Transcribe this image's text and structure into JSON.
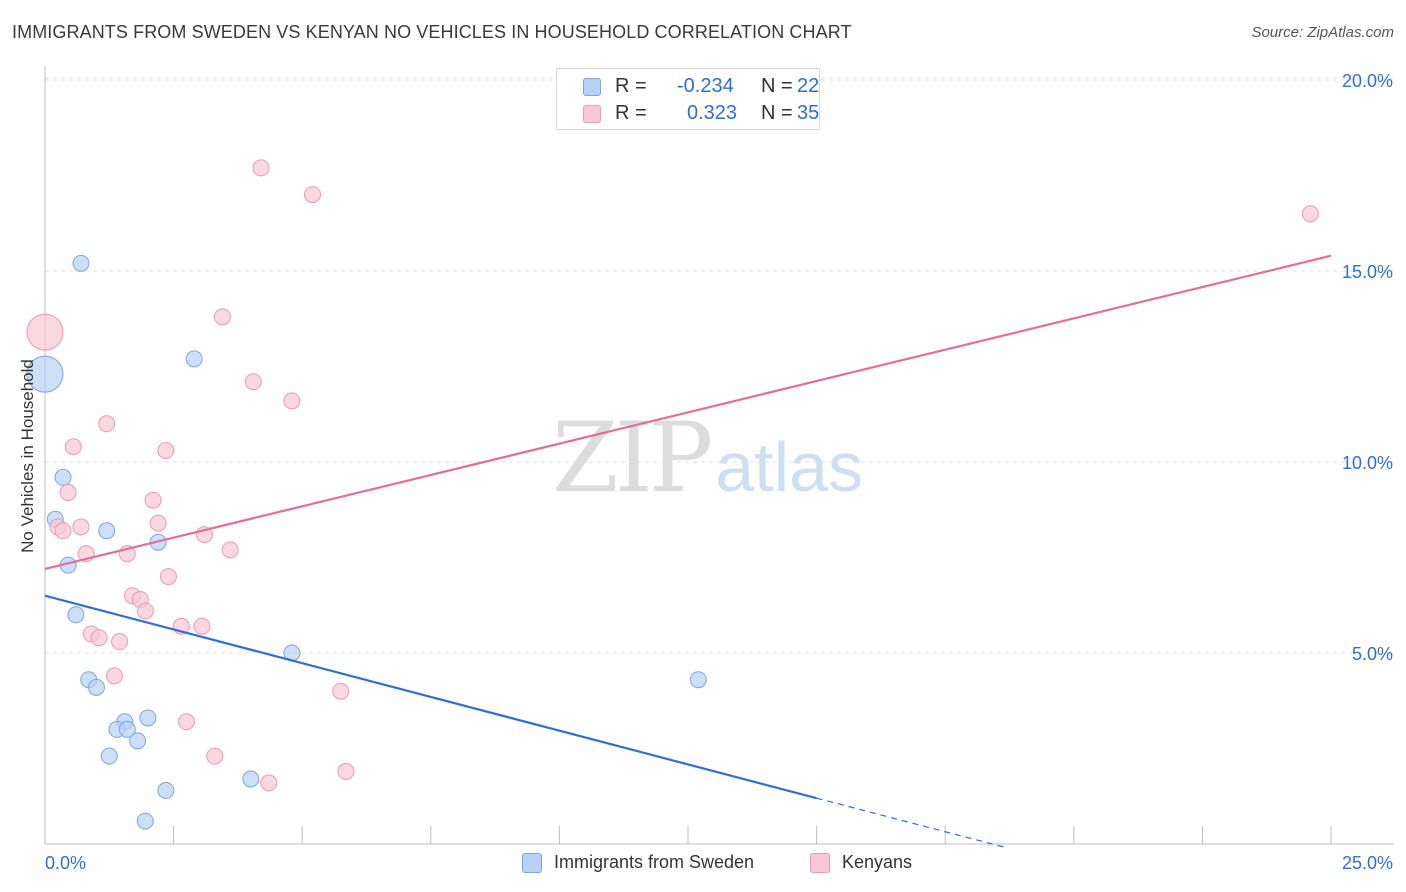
{
  "title": "IMMIGRANTS FROM SWEDEN VS KENYAN NO VEHICLES IN HOUSEHOLD CORRELATION CHART",
  "source": "Source: ZipAtlas.com",
  "watermark": {
    "zip": "ZIP",
    "atlas": "atlas"
  },
  "colors": {
    "sweden_fill": "#b8d2f4",
    "sweden_stroke": "#7aa6de",
    "sweden_line": "#2f6fd0",
    "kenya_fill": "#f8c8d6",
    "kenya_stroke": "#ea9ab3",
    "kenya_line": "#e0709a",
    "value_text": "#2f6fd0",
    "grid": "#e2e2e2"
  },
  "legend": {
    "rows": [
      {
        "r_label": "R =",
        "r_value": "-0.234",
        "n_label": "N =",
        "n_value": "22"
      },
      {
        "r_label": "R =",
        "r_value": "0.323",
        "n_label": "N =",
        "n_value": "35"
      }
    ]
  },
  "bottom_legend": [
    "Immigrants from Sweden",
    "Kenyans"
  ],
  "chart_data": {
    "type": "scatter",
    "title": "IMMIGRANTS FROM SWEDEN VS KENYAN NO VEHICLES IN HOUSEHOLD CORRELATION CHART",
    "xlabel": "",
    "ylabel": "No Vehicles in Household",
    "xlim": [
      0,
      25
    ],
    "ylim": [
      0,
      20.5
    ],
    "x_tick_labels": [
      "0.0%",
      "25.0%"
    ],
    "y_ticks": [
      5,
      10,
      15,
      20
    ],
    "y_tick_labels": [
      "5.0%",
      "10.0%",
      "15.0%",
      "20.0%"
    ],
    "grid": "horizontal dashed",
    "series": [
      {
        "name": "Immigrants from Sweden",
        "points": [
          {
            "x": 0.0,
            "y": 12.3,
            "size": "large"
          },
          {
            "x": 0.7,
            "y": 15.2
          },
          {
            "x": 2.9,
            "y": 12.7
          },
          {
            "x": 0.35,
            "y": 9.6
          },
          {
            "x": 0.2,
            "y": 8.5
          },
          {
            "x": 1.2,
            "y": 8.2
          },
          {
            "x": 2.2,
            "y": 7.9
          },
          {
            "x": 0.45,
            "y": 7.3
          },
          {
            "x": 0.6,
            "y": 6.0
          },
          {
            "x": 4.8,
            "y": 5.0
          },
          {
            "x": 0.85,
            "y": 4.3
          },
          {
            "x": 1.0,
            "y": 4.1
          },
          {
            "x": 1.55,
            "y": 3.2
          },
          {
            "x": 2.0,
            "y": 3.3
          },
          {
            "x": 1.4,
            "y": 3.0
          },
          {
            "x": 1.6,
            "y": 3.0
          },
          {
            "x": 1.8,
            "y": 2.7
          },
          {
            "x": 1.25,
            "y": 2.3
          },
          {
            "x": 4.0,
            "y": 1.7
          },
          {
            "x": 2.35,
            "y": 1.4
          },
          {
            "x": 1.95,
            "y": 0.6
          },
          {
            "x": 12.7,
            "y": 4.3
          }
        ],
        "trend": {
          "x": [
            0,
            15
          ],
          "y": [
            6.5,
            1.2
          ],
          "dashed_extension_to": {
            "x": 18.7,
            "y": -0.1
          }
        }
      },
      {
        "name": "Kenyans",
        "points": [
          {
            "x": 0.0,
            "y": 13.4,
            "size": "large"
          },
          {
            "x": 4.2,
            "y": 17.7
          },
          {
            "x": 5.2,
            "y": 17.0
          },
          {
            "x": 24.6,
            "y": 16.5
          },
          {
            "x": 3.45,
            "y": 13.8
          },
          {
            "x": 4.05,
            "y": 12.1
          },
          {
            "x": 4.8,
            "y": 11.6
          },
          {
            "x": 1.2,
            "y": 11.0
          },
          {
            "x": 0.55,
            "y": 10.4
          },
          {
            "x": 2.35,
            "y": 10.3
          },
          {
            "x": 0.45,
            "y": 9.2
          },
          {
            "x": 2.1,
            "y": 9.0
          },
          {
            "x": 0.25,
            "y": 8.3
          },
          {
            "x": 0.35,
            "y": 8.2
          },
          {
            "x": 0.7,
            "y": 8.3
          },
          {
            "x": 2.2,
            "y": 8.4
          },
          {
            "x": 3.1,
            "y": 8.1
          },
          {
            "x": 0.8,
            "y": 7.6
          },
          {
            "x": 1.6,
            "y": 7.6
          },
          {
            "x": 3.6,
            "y": 7.7
          },
          {
            "x": 2.4,
            "y": 7.0
          },
          {
            "x": 1.7,
            "y": 6.5
          },
          {
            "x": 1.85,
            "y": 6.4
          },
          {
            "x": 1.95,
            "y": 6.1
          },
          {
            "x": 2.65,
            "y": 5.7
          },
          {
            "x": 3.05,
            "y": 5.7
          },
          {
            "x": 0.9,
            "y": 5.5
          },
          {
            "x": 1.05,
            "y": 5.4
          },
          {
            "x": 1.45,
            "y": 5.3
          },
          {
            "x": 1.35,
            "y": 4.4
          },
          {
            "x": 5.75,
            "y": 4.0
          },
          {
            "x": 2.75,
            "y": 3.2
          },
          {
            "x": 3.3,
            "y": 2.3
          },
          {
            "x": 5.85,
            "y": 1.9
          },
          {
            "x": 4.35,
            "y": 1.6
          }
        ],
        "trend": {
          "x": [
            0,
            25
          ],
          "y": [
            7.2,
            15.4
          ]
        }
      }
    ]
  }
}
